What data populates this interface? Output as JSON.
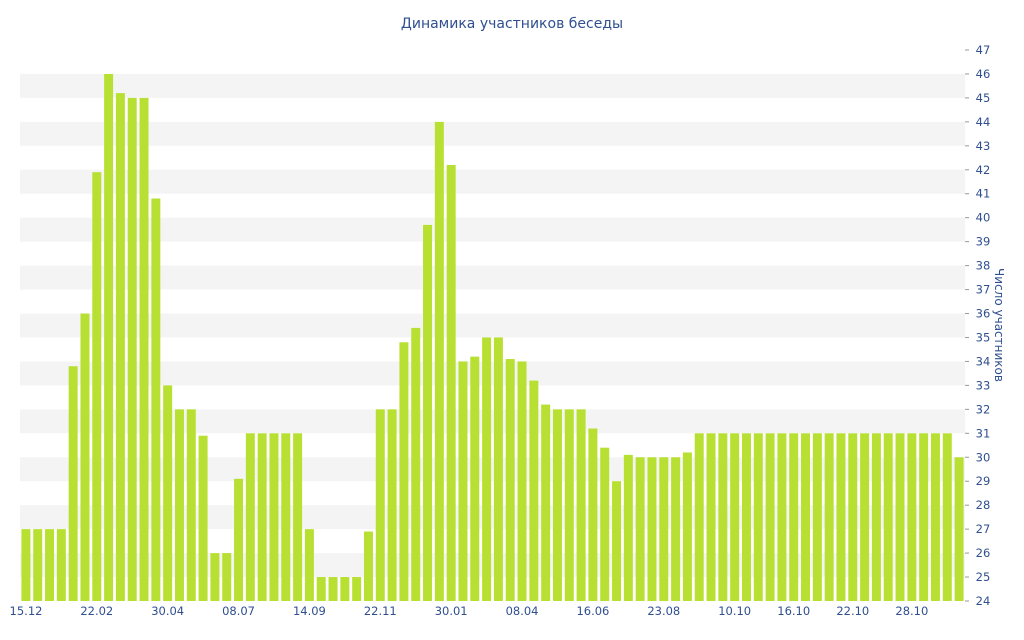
{
  "chart_data": {
    "type": "bar",
    "title": "Динамика участников беседы",
    "xlabel": "",
    "ylabel": "Число участников",
    "ylim": [
      24,
      47
    ],
    "y_axis_position": "right",
    "grid": "horizontal alternating bands",
    "legend": "none",
    "bar_color": "#b8e032",
    "band_color": "#f4f4f4",
    "text_color": "#2f4f8f",
    "x_tick_labels": [
      "15.12",
      "22.02",
      "30.04",
      "08.07",
      "14.09",
      "22.11",
      "30.01",
      "08.04",
      "16.06",
      "23.08",
      "10.10",
      "16.10",
      "22.10",
      "28.10"
    ],
    "x_tick_label_positions": [
      0,
      6,
      12,
      18,
      24,
      30,
      36,
      42,
      48,
      54,
      60,
      65,
      70,
      75
    ],
    "y_ticks": [
      24,
      25,
      26,
      27,
      28,
      29,
      30,
      31,
      32,
      33,
      34,
      35,
      36,
      37,
      38,
      39,
      40,
      41,
      42,
      43,
      44,
      45,
      46,
      47
    ],
    "values": [
      27,
      27,
      27,
      27,
      33.8,
      36,
      41.9,
      46,
      45.2,
      45,
      45,
      40.8,
      33,
      32,
      32,
      30.9,
      26,
      26,
      29.1,
      31,
      31,
      31,
      31,
      31,
      27,
      25,
      25,
      25,
      25,
      26.9,
      32,
      32,
      34.8,
      35.4,
      39.7,
      44,
      42.2,
      34,
      34.2,
      35,
      35,
      34.1,
      34,
      33.2,
      32.2,
      32,
      32,
      32,
      31.2,
      30.4,
      29,
      30.1,
      30,
      30,
      30,
      30,
      30.2,
      31,
      31,
      31,
      31,
      31,
      31,
      31,
      31,
      31,
      31,
      31,
      31,
      31,
      31,
      31,
      31,
      31,
      31,
      31,
      31,
      31,
      31,
      30
    ]
  }
}
